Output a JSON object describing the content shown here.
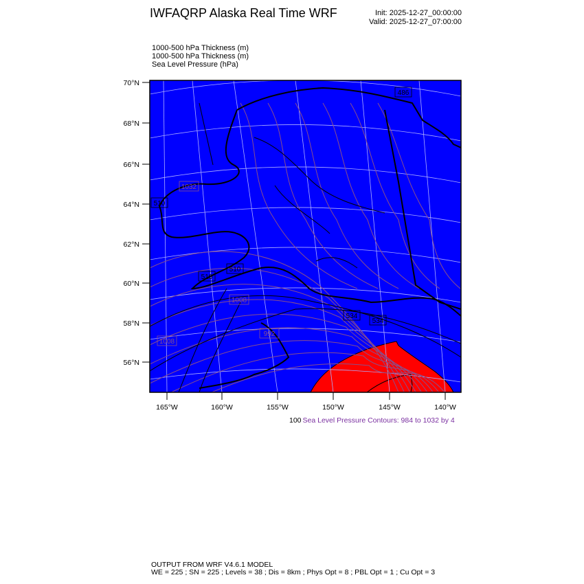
{
  "header": {
    "title": "IWFAQRP Alaska Real Time WRF",
    "init": "Init: 2025-12-27_00:00:00",
    "valid": "Valid: 2025-12-27_07:00:00"
  },
  "fields": [
    "1000-500 hPa Thickness   (m)",
    "1000-500 hPa Thickness   (m)",
    "Sea Level Pressure   (hPa)"
  ],
  "map": {
    "lat_ticks": [
      "70°N",
      "68°N",
      "66°N",
      "64°N",
      "62°N",
      "60°N",
      "58°N",
      "56°N"
    ],
    "lon_ticks": [
      "165°W",
      "160°W",
      "155°W",
      "150°W",
      "145°W",
      "140°W"
    ],
    "colors": {
      "cold_fill": "#0000ff",
      "warm_fill": "#ff0000",
      "slp_contour": "#8a4f8a",
      "thickness_contour": "#000000",
      "grid": "#a0a0ff"
    },
    "thickness_labels": [
      "510",
      "510",
      "510",
      "534",
      "534",
      "486"
    ],
    "slp_labels": [
      "1008",
      "1008",
      "992",
      "1032"
    ]
  },
  "contour_info": {
    "prefix": "100",
    "label": "Sea Level Pressure Contours: 984 to 1032 by 4"
  },
  "footer": {
    "line1": "OUTPUT FROM WRF V4.6.1 MODEL",
    "line2": "WE = 225 ; SN = 225 ; Levels = 38 ; Dis = 8km ; Phys Opt = 8 ; PBL Opt = 1 ; Cu Opt = 3"
  }
}
